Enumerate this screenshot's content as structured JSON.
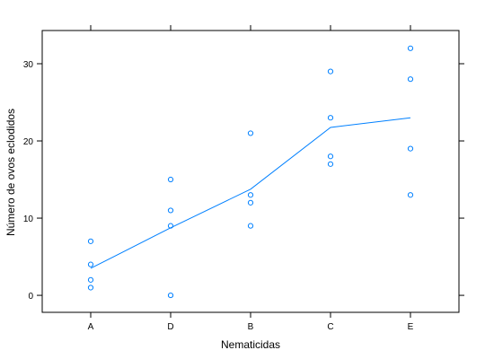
{
  "chart_data": {
    "type": "scatter",
    "xlabel": "Nematicidas",
    "ylabel": "Número de ovos eclodidos",
    "categories": [
      "A",
      "D",
      "B",
      "C",
      "E"
    ],
    "yticks": [
      0,
      10,
      20,
      30
    ],
    "ylim": [
      -2.2,
      34.3
    ],
    "grid": false,
    "series": [
      {
        "type": "scatter",
        "points": [
          {
            "x": "A",
            "y": 7
          },
          {
            "x": "A",
            "y": 4
          },
          {
            "x": "A",
            "y": 2
          },
          {
            "x": "A",
            "y": 1
          },
          {
            "x": "D",
            "y": 15
          },
          {
            "x": "D",
            "y": 11
          },
          {
            "x": "D",
            "y": 9
          },
          {
            "x": "D",
            "y": 0
          },
          {
            "x": "B",
            "y": 21
          },
          {
            "x": "B",
            "y": 13
          },
          {
            "x": "B",
            "y": 12
          },
          {
            "x": "B",
            "y": 9
          },
          {
            "x": "C",
            "y": 29
          },
          {
            "x": "C",
            "y": 23
          },
          {
            "x": "C",
            "y": 18
          },
          {
            "x": "C",
            "y": 17
          },
          {
            "x": "E",
            "y": 32
          },
          {
            "x": "E",
            "y": 28
          },
          {
            "x": "E",
            "y": 19
          },
          {
            "x": "E",
            "y": 13
          }
        ]
      },
      {
        "type": "line",
        "values": [
          3.5,
          8.75,
          13.75,
          21.75,
          23
        ]
      }
    ],
    "colors": {
      "points": "#0080ff",
      "line": "#0080ff",
      "frame": "#000000"
    }
  }
}
